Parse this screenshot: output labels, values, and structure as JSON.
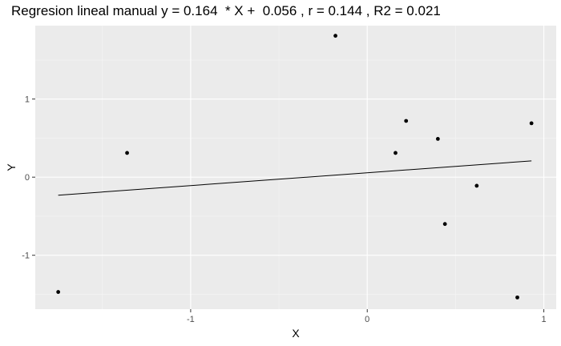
{
  "chart_data": {
    "type": "scatter",
    "title": "Regresion lineal manual y = 0.164  * X +  0.056 , r = 0.144 , R2 = 0.021",
    "xlabel": "X",
    "ylabel": "Y",
    "xlim": [
      -1.88,
      1.07
    ],
    "ylim": [
      -1.69,
      1.94
    ],
    "x_ticks": [
      -1,
      0,
      1
    ],
    "y_ticks": [
      -1,
      0,
      1
    ],
    "x_tick_labels": [
      "-1",
      "0",
      "1"
    ],
    "y_tick_labels": [
      "-1",
      "0",
      "1"
    ],
    "grid": true,
    "points": [
      {
        "x": -1.75,
        "y": -1.47
      },
      {
        "x": -1.36,
        "y": 0.31
      },
      {
        "x": -0.18,
        "y": 1.81
      },
      {
        "x": 0.16,
        "y": 0.31
      },
      {
        "x": 0.22,
        "y": 0.72
      },
      {
        "x": 0.4,
        "y": 0.49
      },
      {
        "x": 0.44,
        "y": -0.6
      },
      {
        "x": 0.62,
        "y": -0.11
      },
      {
        "x": 0.85,
        "y": -1.54
      },
      {
        "x": 0.93,
        "y": 0.69
      }
    ],
    "regression": {
      "slope": 0.164,
      "intercept": 0.056,
      "x_range": [
        -1.75,
        0.93
      ]
    }
  }
}
